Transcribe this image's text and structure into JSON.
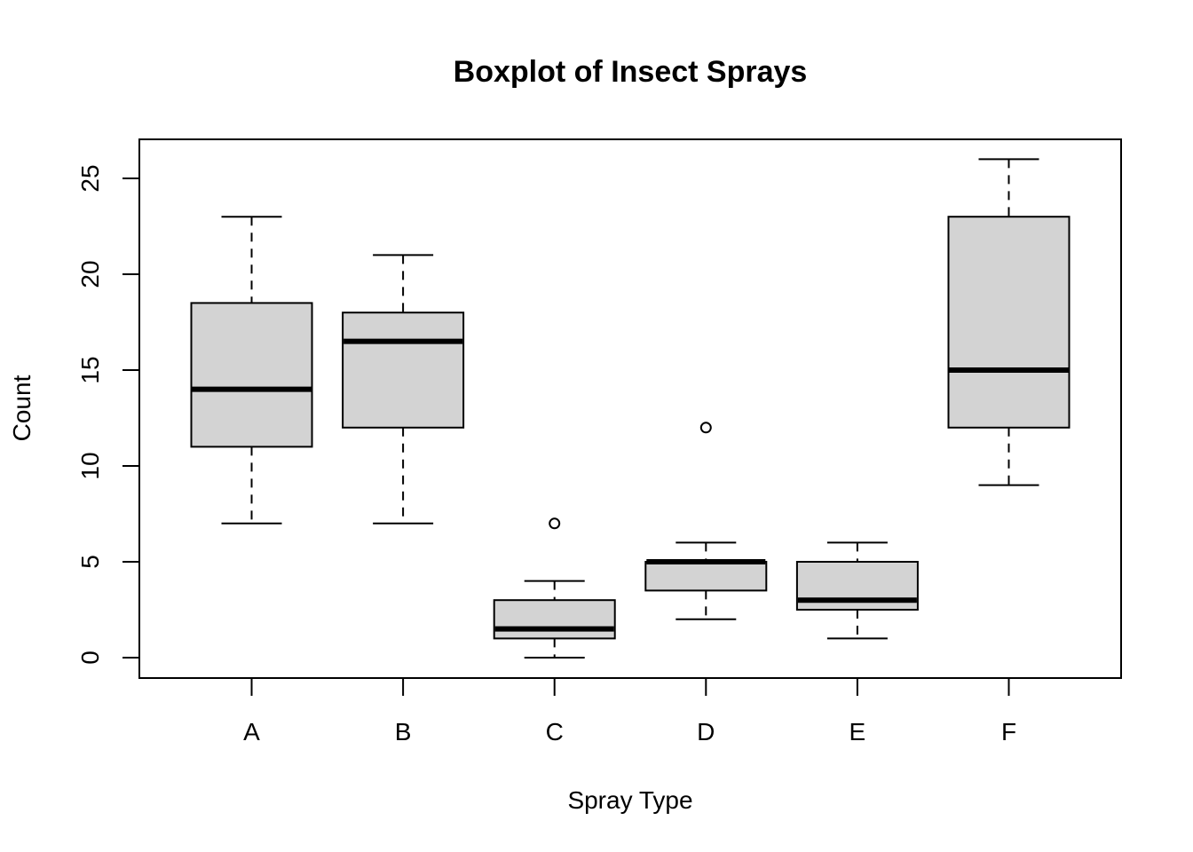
{
  "chart_data": {
    "type": "boxplot",
    "title": "Boxplot of Insect Sprays",
    "xlabel": "Spray Type",
    "ylabel": "Count",
    "ylim": [
      -1,
      27
    ],
    "yticks": [
      0,
      5,
      10,
      15,
      20,
      25
    ],
    "grid": false,
    "legend": null,
    "box_fill": "#d3d3d3",
    "categories": [
      "A",
      "B",
      "C",
      "D",
      "E",
      "F"
    ],
    "boxes": [
      {
        "label": "A",
        "lower_whisker": 7,
        "q1": 11,
        "median": 14,
        "q3": 18.5,
        "upper_whisker": 23,
        "outliers": []
      },
      {
        "label": "B",
        "lower_whisker": 7,
        "q1": 12,
        "median": 16.5,
        "q3": 18,
        "upper_whisker": 21,
        "outliers": []
      },
      {
        "label": "C",
        "lower_whisker": 0,
        "q1": 1,
        "median": 1.5,
        "q3": 3,
        "upper_whisker": 4,
        "outliers": [
          7
        ]
      },
      {
        "label": "D",
        "lower_whisker": 2,
        "q1": 3.5,
        "median": 5,
        "q3": 5,
        "upper_whisker": 6,
        "outliers": [
          12
        ]
      },
      {
        "label": "E",
        "lower_whisker": 1,
        "q1": 2.5,
        "median": 3,
        "q3": 5,
        "upper_whisker": 6,
        "outliers": []
      },
      {
        "label": "F",
        "lower_whisker": 9,
        "q1": 12,
        "median": 15,
        "q3": 23,
        "upper_whisker": 26,
        "outliers": []
      }
    ]
  }
}
